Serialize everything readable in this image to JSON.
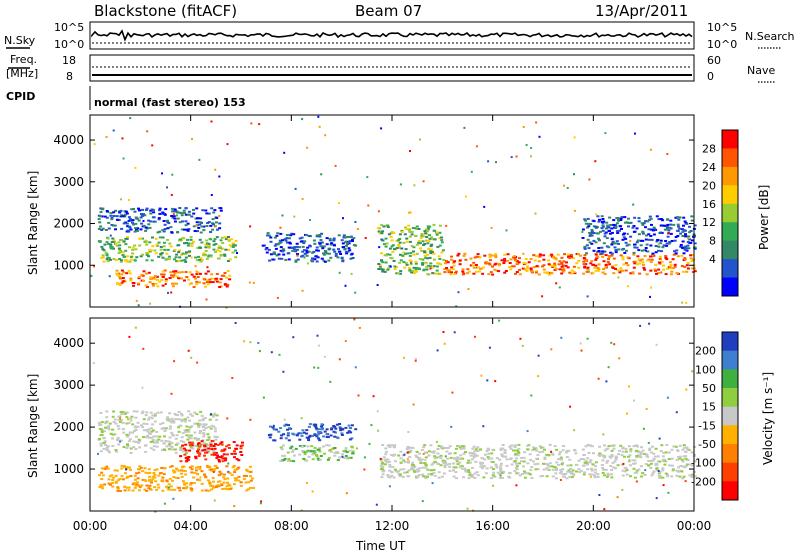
{
  "header": {
    "station": "Blackstone (fitACF)",
    "beam": "Beam 07",
    "date": "13/Apr/2011"
  },
  "noise_panel": {
    "left_label": "N.Sky",
    "right_label": "N.Search",
    "left_ticks": [
      "10^5",
      "10^0"
    ],
    "right_ticks": [
      "10^5",
      "10^0"
    ]
  },
  "freq_panel": {
    "left_label_1": "Freq.",
    "left_label_2": "[MHz]",
    "right_label": "Nave",
    "left_ticks": [
      "18",
      "8"
    ],
    "right_ticks": [
      "60",
      "0"
    ]
  },
  "cpid_panel": {
    "label": "CPID",
    "text": "normal (fast stereo) 153"
  },
  "chart_data": [
    {
      "type": "heatmap",
      "title": "",
      "xlabel": "",
      "ylabel": "Slant Range [km]",
      "x_range": [
        "00:00",
        "24:00"
      ],
      "ylim": [
        0,
        4600
      ],
      "yticks": [
        "4000",
        "3000",
        "2000",
        "1000"
      ],
      "colorbar": {
        "label": "Power [dB]",
        "ticks": [
          "28",
          "24",
          "20",
          "16",
          "12",
          "8",
          "4"
        ],
        "colors": [
          "#ff0000",
          "#ff5500",
          "#ff9900",
          "#ffcc00",
          "#99cc33",
          "#33aa55",
          "#338866",
          "#2255cc",
          "#0000ff"
        ]
      },
      "echo_bands": [
        {
          "t_start": 0.3,
          "t_end": 5.2,
          "range_low": 1800,
          "range_high": 2400,
          "level": "weak"
        },
        {
          "t_start": 0.3,
          "t_end": 5.8,
          "range_low": 1100,
          "range_high": 1700,
          "level": "medium"
        },
        {
          "t_start": 1.0,
          "t_end": 5.5,
          "range_low": 500,
          "range_high": 900,
          "level": "strong"
        },
        {
          "t_start": 6.8,
          "t_end": 10.5,
          "range_low": 1100,
          "range_high": 1800,
          "level": "weak"
        },
        {
          "t_start": 11.4,
          "t_end": 14.0,
          "range_low": 800,
          "range_high": 2000,
          "level": "medium"
        },
        {
          "t_start": 14.0,
          "t_end": 24.0,
          "range_low": 800,
          "range_high": 1300,
          "level": "strong"
        },
        {
          "t_start": 19.5,
          "t_end": 24.0,
          "range_low": 1300,
          "range_high": 2200,
          "level": "weak"
        }
      ]
    },
    {
      "type": "heatmap",
      "title": "",
      "xlabel": "Time UT",
      "ylabel": "Slant Range [km]",
      "x_range": [
        "00:00",
        "24:00"
      ],
      "xticks": [
        "00:00",
        "04:00",
        "08:00",
        "12:00",
        "16:00",
        "20:00",
        "00:00"
      ],
      "ylim": [
        0,
        4600
      ],
      "yticks": [
        "4000",
        "3000",
        "2000",
        "1000"
      ],
      "colorbar": {
        "label": "Velocity [m s⁻¹]",
        "ticks": [
          "200",
          "100",
          "50",
          "15",
          "-15",
          "-50",
          "-100",
          "-200"
        ],
        "colors": [
          "#1f3fbf",
          "#3f7fcf",
          "#3faf3f",
          "#8fcf3f",
          "#c8c8c8",
          "#ffb000",
          "#ff7f00",
          "#ff3f00",
          "#ff0000"
        ]
      },
      "echo_bands": [
        {
          "t_start": 0.3,
          "t_end": 5.0,
          "range_low": 1400,
          "range_high": 2400,
          "level": "ground"
        },
        {
          "t_start": 0.3,
          "t_end": 6.5,
          "range_low": 500,
          "range_high": 1100,
          "level": "negative"
        },
        {
          "t_start": 3.5,
          "t_end": 6.0,
          "range_low": 1200,
          "range_high": 1700,
          "level": "strong_negative"
        },
        {
          "t_start": 7.0,
          "t_end": 10.5,
          "range_low": 1700,
          "range_high": 2100,
          "level": "positive"
        },
        {
          "t_start": 7.5,
          "t_end": 10.5,
          "range_low": 1200,
          "range_high": 1600,
          "level": "weak_positive"
        },
        {
          "t_start": 11.5,
          "t_end": 24.0,
          "range_low": 800,
          "range_high": 1600,
          "level": "ground"
        }
      ]
    }
  ]
}
